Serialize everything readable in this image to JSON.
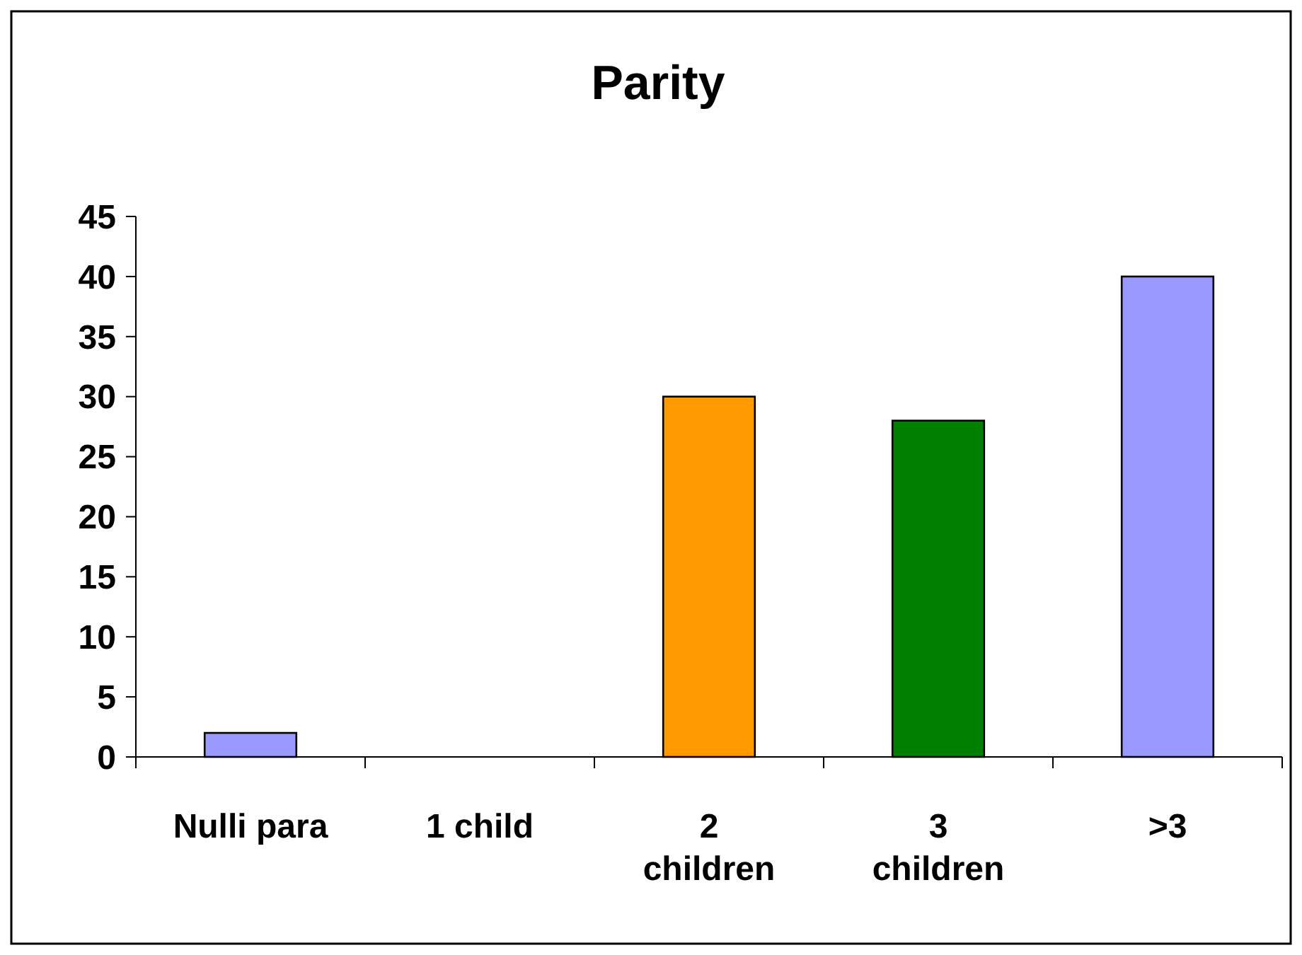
{
  "chart_data": {
    "type": "bar",
    "title": "Parity",
    "categories": [
      "Nulli para",
      "1 child",
      "2\nchildren",
      "3\nchildren",
      ">3"
    ],
    "values": [
      2,
      0,
      30,
      28,
      40
    ],
    "colors": [
      "#9999ff",
      "#9999ff",
      "#ff9900",
      "#008000",
      "#9999ff"
    ],
    "ylim": [
      0,
      45
    ],
    "yticks": [
      0,
      5,
      10,
      15,
      20,
      25,
      30,
      35,
      40,
      45
    ],
    "grid": false
  }
}
